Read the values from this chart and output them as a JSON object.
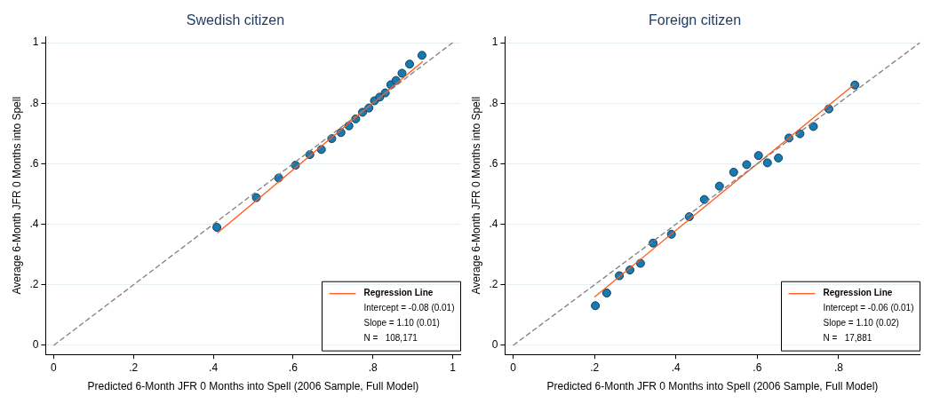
{
  "chart_data": [
    {
      "type": "scatter",
      "title": "Swedish citizen",
      "xlabel": "Predicted 6-Month JFR 0 Months into Spell (2006 Sample, Full Model)",
      "ylabel": "Average 6-Month JFR 0 Months into Spell",
      "xlim": [
        -0.02,
        1.02
      ],
      "ylim": [
        -0.03,
        1.02
      ],
      "xticks": [
        {
          "value": 0,
          "label": "0"
        },
        {
          "value": 0.2,
          "label": ".2"
        },
        {
          "value": 0.4,
          "label": ".4"
        },
        {
          "value": 0.6,
          "label": ".6"
        },
        {
          "value": 0.8,
          "label": ".8"
        },
        {
          "value": 1,
          "label": "1"
        }
      ],
      "yticks": [
        {
          "value": 0,
          "label": "0"
        },
        {
          "value": 0.2,
          "label": ".2"
        },
        {
          "value": 0.4,
          "label": ".4"
        },
        {
          "value": 0.6,
          "label": ".6"
        },
        {
          "value": 0.8,
          "label": ".8"
        },
        {
          "value": 1,
          "label": "1"
        }
      ],
      "grid": "y",
      "legend": "bottom right",
      "annotations": [
        "Intercept = -0.08 (0.01)",
        "Slope = 1.10 (0.01)",
        "N =   108,171"
      ],
      "series": [
        {
          "type": "line",
          "color": "#808080",
          "line_style": "dashed",
          "x": [
            0,
            1
          ],
          "values": [
            0,
            1
          ]
        },
        {
          "type": "line",
          "name": "Regression Line",
          "color": "#ff5a1e",
          "line_style": "solid",
          "x": [
            0.41,
            0.925
          ],
          "values": [
            0.371,
            0.938
          ]
        },
        {
          "type": "scatter",
          "marker": "circle",
          "color": "#1a7ab0",
          "x": [
            0.409,
            0.508,
            0.564,
            0.606,
            0.642,
            0.671,
            0.697,
            0.72,
            0.74,
            0.757,
            0.774,
            0.79,
            0.804,
            0.817,
            0.831,
            0.845,
            0.858,
            0.873,
            0.892,
            0.923
          ],
          "values": [
            0.39,
            0.488,
            0.553,
            0.595,
            0.63,
            0.647,
            0.683,
            0.703,
            0.725,
            0.748,
            0.77,
            0.784,
            0.808,
            0.82,
            0.834,
            0.861,
            0.875,
            0.899,
            0.929,
            0.958
          ]
        }
      ]
    },
    {
      "type": "scatter",
      "title": "Foreign citizen",
      "xlabel": "Predicted 6-Month JFR 0 Months into Spell (2006 Sample, Full Model)",
      "ylabel": "Average 6-Month JFR 0 Months into Spell",
      "xlim": [
        -0.02,
        1.0
      ],
      "ylim": [
        -0.03,
        1.02
      ],
      "xticks": [
        {
          "value": 0,
          "label": "0"
        },
        {
          "value": 0.2,
          "label": ".2"
        },
        {
          "value": 0.4,
          "label": ".4"
        },
        {
          "value": 0.6,
          "label": ".6"
        },
        {
          "value": 0.8,
          "label": ".8"
        }
      ],
      "yticks": [
        {
          "value": 0,
          "label": "0"
        },
        {
          "value": 0.2,
          "label": ".2"
        },
        {
          "value": 0.4,
          "label": ".4"
        },
        {
          "value": 0.6,
          "label": ".6"
        },
        {
          "value": 0.8,
          "label": ".8"
        },
        {
          "value": 1,
          "label": "1"
        }
      ],
      "grid": "y",
      "legend": "bottom right",
      "annotations": [
        "Intercept = -0.06 (0.01)",
        "Slope = 1.10 (0.02)",
        "N =   17,881"
      ],
      "series": [
        {
          "type": "line",
          "color": "#808080",
          "line_style": "dashed",
          "x": [
            0,
            1
          ],
          "values": [
            0,
            1
          ]
        },
        {
          "type": "line",
          "name": "Regression Line",
          "color": "#ff5a1e",
          "line_style": "solid",
          "x": [
            0.2,
            0.84
          ],
          "values": [
            0.16,
            0.864
          ]
        },
        {
          "type": "scatter",
          "marker": "circle",
          "color": "#1a7ab0",
          "x": [
            0.202,
            0.23,
            0.261,
            0.287,
            0.313,
            0.344,
            0.389,
            0.433,
            0.47,
            0.507,
            0.542,
            0.574,
            0.603,
            0.625,
            0.652,
            0.678,
            0.705,
            0.738,
            0.776,
            0.84
          ],
          "values": [
            0.131,
            0.173,
            0.23,
            0.249,
            0.271,
            0.338,
            0.367,
            0.425,
            0.482,
            0.526,
            0.572,
            0.597,
            0.627,
            0.603,
            0.619,
            0.685,
            0.699,
            0.723,
            0.781,
            0.86
          ]
        }
      ]
    }
  ]
}
